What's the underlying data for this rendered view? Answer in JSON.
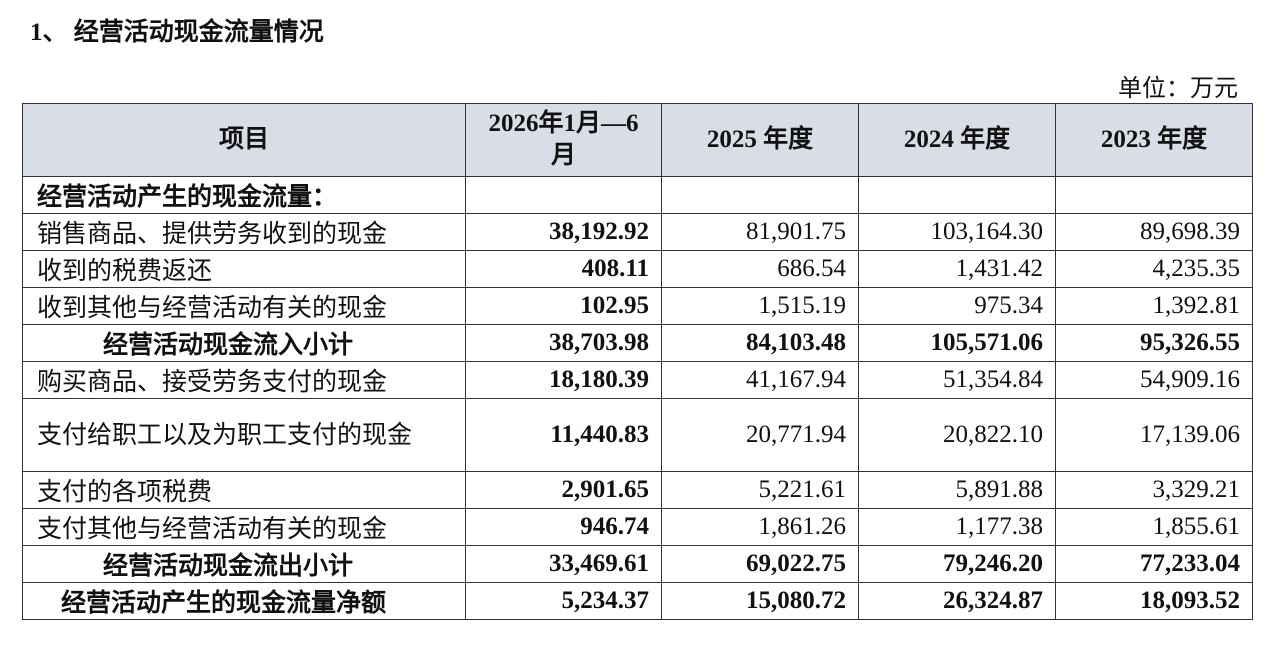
{
  "header": {
    "title": "1、 经营活动现金流量情况",
    "unit": "单位：万元"
  },
  "table": {
    "columns": [
      "项目",
      "2026年1月—6月",
      "2025 年度",
      "2024 年度",
      "2023 年度"
    ],
    "rows": [
      [
        "经营活动产生的现金流量："
      ],
      [
        "销售商品、提供劳务收到的现金",
        "38,192.92",
        "81,901.75",
        "103,164.30",
        "89,698.39"
      ],
      [
        "收到的税费返还",
        "408.11",
        "686.54",
        "1,431.42",
        "4,235.35"
      ],
      [
        "收到其他与经营活动有关的现金",
        "102.95",
        "1,515.19",
        "975.34",
        "1,392.81"
      ],
      [
        "经营活动现金流入小计",
        "38,703.98",
        "84,103.48",
        "105,571.06",
        "95,326.55"
      ],
      [
        "购买商品、接受劳务支付的现金",
        "18,180.39",
        "41,167.94",
        "51,354.84",
        "54,909.16"
      ],
      [
        "支付给职工以及为职工支付的现金",
        "11,440.83",
        "20,771.94",
        "20,822.10",
        "17,139.06"
      ],
      [
        "支付的各项税费",
        "2,901.65",
        "5,221.61",
        "5,891.88",
        "3,329.21"
      ],
      [
        "支付其他与经营活动有关的现金",
        "946.74",
        "1,861.26",
        "1,177.38",
        "1,855.61"
      ],
      [
        "经营活动现金流出小计",
        "33,469.61",
        "69,022.75",
        "79,246.20",
        "77,233.04"
      ],
      [
        "经营活动产生的现金流量净额",
        "5,234.37",
        "15,080.72",
        "26,324.87",
        "18,093.52"
      ]
    ]
  }
}
